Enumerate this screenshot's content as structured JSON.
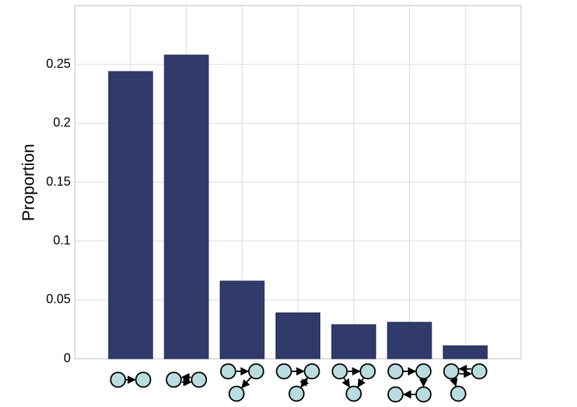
{
  "chart_data": {
    "type": "bar",
    "title": "",
    "xlabel": "",
    "ylabel": "Proportion",
    "ylim": [
      0,
      0.3
    ],
    "yticks": [
      0,
      0.05,
      0.1,
      0.15,
      0.2,
      0.25
    ],
    "ytick_labels": [
      "0",
      "0.05",
      "0.1",
      "0.15",
      "0.2",
      "0.25"
    ],
    "grid": true,
    "bar_color": "#303a6b",
    "node_color": "#b9dce0",
    "categories": [
      "motif-1",
      "motif-2",
      "motif-3",
      "motif-4",
      "motif-5",
      "motif-6",
      "motif-7"
    ],
    "values": [
      0.244,
      0.258,
      0.066,
      0.039,
      0.029,
      0.031,
      0.011
    ]
  }
}
